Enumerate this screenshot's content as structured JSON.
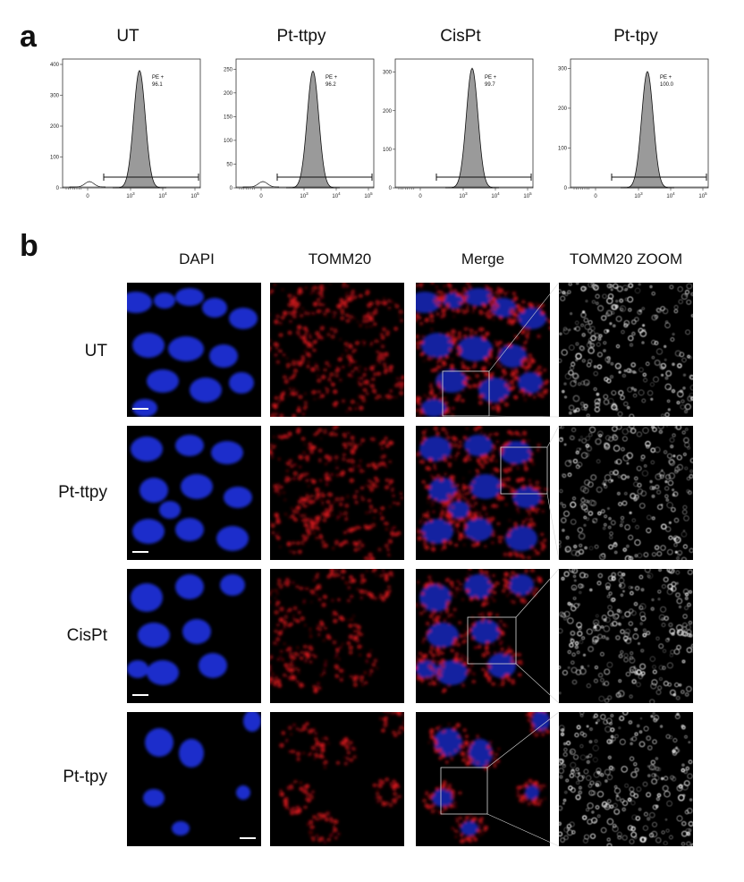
{
  "panel_a": {
    "letter": "a",
    "histograms": [
      {
        "title": "UT",
        "gate_label": "PE +",
        "gate_value": "96.1",
        "yticks": [
          "0",
          "100",
          "200",
          "300",
          "400"
        ],
        "ymax": 400,
        "peak": 380,
        "small_peak": 8
      },
      {
        "title": "Pt-ttpy",
        "gate_label": "PE +",
        "gate_value": "96.2",
        "yticks": [
          "0",
          "50",
          "100",
          "150",
          "200",
          "250"
        ],
        "ymax": 260,
        "peak": 246,
        "small_peak": 8
      },
      {
        "title": "CisPt",
        "gate_label": "PE +",
        "gate_value": "99.7",
        "yticks": [
          "0",
          "100",
          "200",
          "300"
        ],
        "ymax": 320,
        "peak": 310,
        "small_peak": 0
      },
      {
        "title": "Pt-tpy",
        "gate_label": "PE +",
        "gate_value": "100.0",
        "yticks": [
          "0",
          "100",
          "200",
          "300"
        ],
        "ymax": 310,
        "peak": 292,
        "small_peak": 0
      }
    ],
    "xticks": [
      "0",
      "10",
      "10",
      "10"
    ],
    "xtick_exps": [
      "",
      "3",
      "4",
      "5"
    ]
  },
  "panel_b": {
    "letter": "b",
    "columns": [
      "DAPI",
      "TOMM20",
      "Merge",
      "TOMM20 ZOOM"
    ],
    "rows": [
      "UT",
      "Pt-ttpy",
      "CisPt",
      "Pt-tpy"
    ],
    "colors": {
      "dapi": "#1a2fd6",
      "tomm20": "#d4161c",
      "zoom": "#e6e6e6",
      "background": "#000000"
    }
  }
}
